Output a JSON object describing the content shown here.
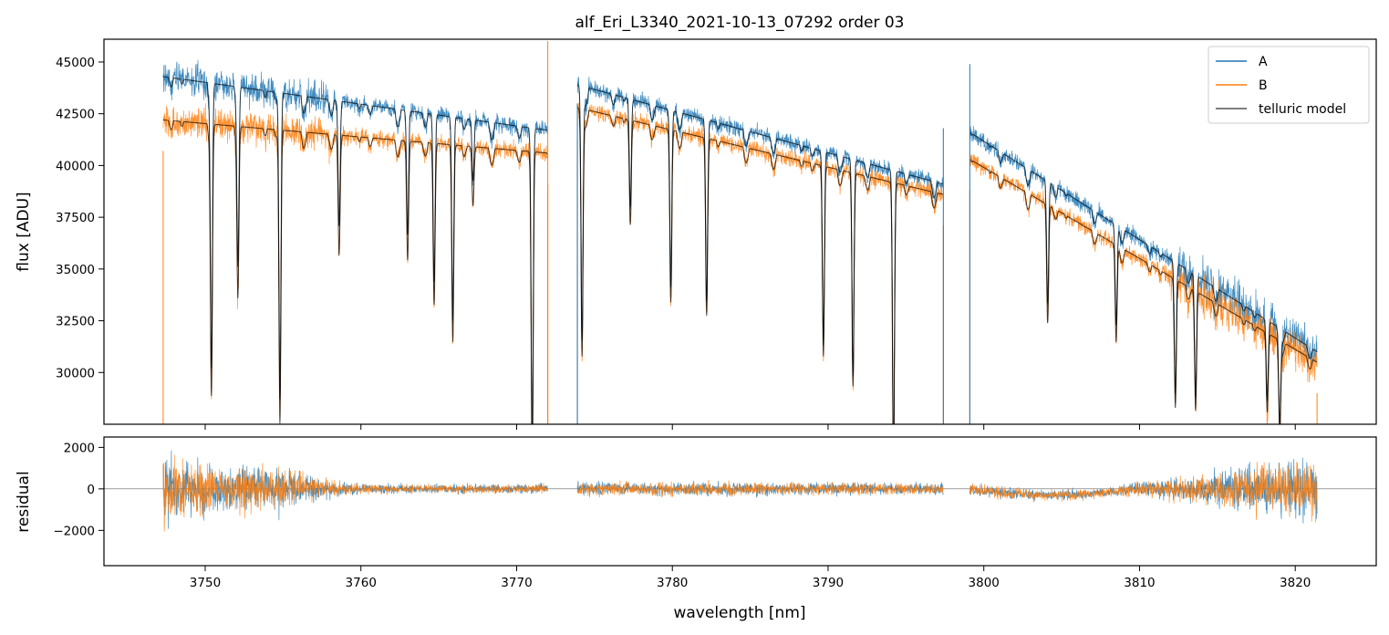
{
  "figure": {
    "title": "alf_Eri_L3340_2021-10-13_07292  order 03"
  },
  "colors": {
    "A": "#1f77b4",
    "B": "#ff7f0e",
    "model": "#000000"
  },
  "chart_data": [
    {
      "type": "line",
      "panel": "top",
      "title": "alf_Eri_L3340_2021-10-13_07292  order 03",
      "xlabel": "",
      "ylabel": "flux [ADU]",
      "xlim": [
        3743.5,
        3825.2
      ],
      "ylim": [
        27500,
        46100
      ],
      "yticks": [
        30000,
        32500,
        35000,
        37500,
        40000,
        42500,
        45000
      ],
      "ytick_labels": [
        "30000",
        "32500",
        "35000",
        "37500",
        "40000",
        "42500",
        "45000"
      ],
      "legend": {
        "position": "top-right",
        "entries": [
          "A",
          "B",
          "telluric model"
        ]
      },
      "grid": false,
      "segments": [
        {
          "x": [
            3747.3,
            3772.0
          ],
          "A_level": [
            44300,
            41700
          ],
          "B_level": [
            42200,
            40600
          ]
        },
        {
          "x": [
            3773.9,
            3797.4
          ],
          "A_level": [
            43900,
            39100
          ],
          "B_level": [
            42800,
            38600
          ]
        },
        {
          "x": [
            3799.1,
            3821.4
          ],
          "A_level": [
            41600,
            31000
          ],
          "B_level": [
            40300,
            30500
          ]
        }
      ],
      "absorption_lines": [
        {
          "x": 3750.4,
          "depth": 0.3
        },
        {
          "x": 3752.1,
          "depth": 0.18
        },
        {
          "x": 3754.8,
          "depth": 0.34
        },
        {
          "x": 3758.6,
          "depth": 0.14
        },
        {
          "x": 3763.0,
          "depth": 0.14
        },
        {
          "x": 3764.7,
          "depth": 0.19
        },
        {
          "x": 3765.9,
          "depth": 0.23
        },
        {
          "x": 3767.2,
          "depth": 0.07
        },
        {
          "x": 3771.0,
          "depth": 0.38
        },
        {
          "x": 3774.2,
          "depth": 0.28
        },
        {
          "x": 3777.3,
          "depth": 0.12
        },
        {
          "x": 3779.9,
          "depth": 0.2
        },
        {
          "x": 3782.2,
          "depth": 0.2
        },
        {
          "x": 3789.7,
          "depth": 0.23
        },
        {
          "x": 3791.6,
          "depth": 0.26
        },
        {
          "x": 3794.2,
          "depth": 0.35
        },
        {
          "x": 3804.1,
          "depth": 0.15
        },
        {
          "x": 3808.5,
          "depth": 0.13
        },
        {
          "x": 3812.3,
          "depth": 0.18
        },
        {
          "x": 3813.6,
          "depth": 0.17
        },
        {
          "x": 3818.2,
          "depth": 0.12
        },
        {
          "x": 3819.0,
          "depth": 0.14
        }
      ],
      "spikes": [
        {
          "x": 3772.0,
          "y": 46000,
          "series": "B"
        },
        {
          "x": 3773.9,
          "y": 43000,
          "series": "A"
        },
        {
          "x": 3797.4,
          "y": 41800,
          "series": "A"
        },
        {
          "x": 3799.1,
          "y": 44900,
          "series": "A"
        }
      ],
      "series": [
        {
          "name": "A",
          "color": "#1f77b4"
        },
        {
          "name": "B",
          "color": "#ff7f0e"
        },
        {
          "name": "telluric model",
          "color": "#000000"
        }
      ]
    },
    {
      "type": "line",
      "panel": "bottom",
      "xlabel": "wavelength [nm]",
      "ylabel": "residual",
      "xlim": [
        3743.5,
        3825.2
      ],
      "ylim": [
        -3700,
        2500
      ],
      "yticks": [
        -2000,
        0,
        2000
      ],
      "ytick_labels": [
        "−2000",
        "0",
        "2000"
      ],
      "xticks": [
        3750,
        3760,
        3770,
        3780,
        3790,
        3800,
        3810,
        3820
      ],
      "xtick_labels": [
        "3750",
        "3760",
        "3770",
        "3780",
        "3790",
        "3800",
        "3810",
        "3820"
      ],
      "zero_line": 0,
      "noise_envelope": [
        {
          "x": 3747.3,
          "amp": 4000
        },
        {
          "x": 3749.0,
          "amp": 2500
        },
        {
          "x": 3752.0,
          "amp": 2200
        },
        {
          "x": 3755.0,
          "amp": 2000
        },
        {
          "x": 3758.0,
          "amp": 900
        },
        {
          "x": 3760.0,
          "amp": 450
        },
        {
          "x": 3772.0,
          "amp": 450
        },
        {
          "x": 3773.9,
          "amp": 700
        },
        {
          "x": 3797.4,
          "amp": 550
        },
        {
          "x": 3799.1,
          "amp": 600
        },
        {
          "x": 3808.0,
          "amp": 450
        },
        {
          "x": 3811.0,
          "amp": 900
        },
        {
          "x": 3815.0,
          "amp": 1500
        },
        {
          "x": 3818.0,
          "amp": 2500
        },
        {
          "x": 3821.4,
          "amp": 3000
        }
      ],
      "series": [
        {
          "name": "A",
          "color": "#1f77b4"
        },
        {
          "name": "B",
          "color": "#ff7f0e"
        }
      ]
    }
  ]
}
